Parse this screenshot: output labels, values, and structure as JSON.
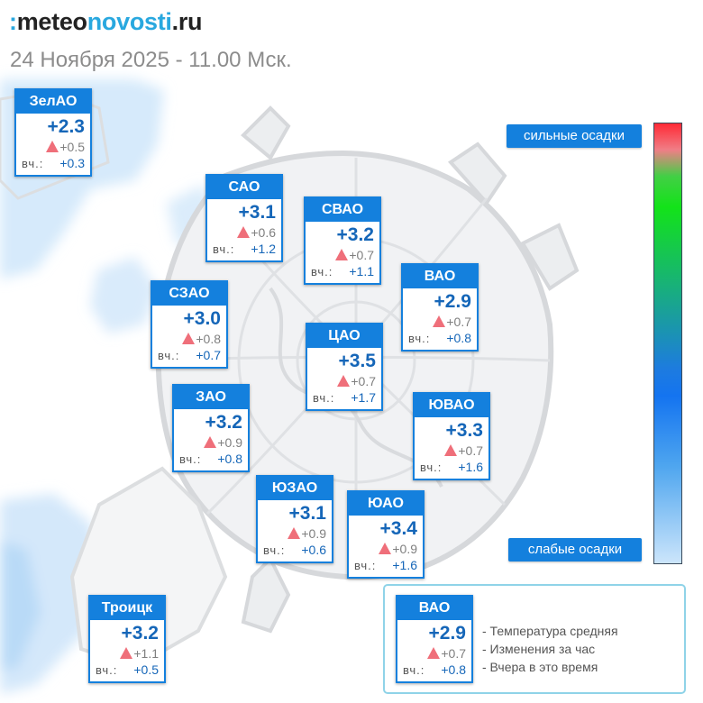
{
  "brand": {
    "mark": ":",
    "part1": "meteo",
    "part2": "novosti",
    "part3": ".ru"
  },
  "subtitle": "24 Ноября 2025 - 11.00 Мск.",
  "colors": {
    "card_accent": "#1480dd",
    "temp_text": "#1566b8",
    "change_triangle": "#ef6f7a",
    "legend_border": "#8fd3e8"
  },
  "icons": {
    "change": "triangle-up-icon"
  },
  "districts": [
    {
      "name": "ЗелАО",
      "temp": "+2.3",
      "change": "+0.5",
      "yesterday_label": "вч.:",
      "yesterday": "+0.3"
    },
    {
      "name": "САО",
      "temp": "+3.1",
      "change": "+0.6",
      "yesterday_label": "вч.:",
      "yesterday": "+1.2"
    },
    {
      "name": "СВАО",
      "temp": "+3.2",
      "change": "+0.7",
      "yesterday_label": "вч.:",
      "yesterday": "+1.1"
    },
    {
      "name": "ВАО",
      "temp": "+2.9",
      "change": "+0.7",
      "yesterday_label": "вч.:",
      "yesterday": "+0.8"
    },
    {
      "name": "СЗАО",
      "temp": "+3.0",
      "change": "+0.8",
      "yesterday_label": "вч.:",
      "yesterday": "+0.7"
    },
    {
      "name": "ЦАО",
      "temp": "+3.5",
      "change": "+0.7",
      "yesterday_label": "вч.:",
      "yesterday": "+1.7"
    },
    {
      "name": "ЗАО",
      "temp": "+3.2",
      "change": "+0.9",
      "yesterday_label": "вч.:",
      "yesterday": "+0.8"
    },
    {
      "name": "ЮВАО",
      "temp": "+3.3",
      "change": "+0.7",
      "yesterday_label": "вч.:",
      "yesterday": "+1.6"
    },
    {
      "name": "ЮЗАО",
      "temp": "+3.1",
      "change": "+0.9",
      "yesterday_label": "вч.:",
      "yesterday": "+0.6"
    },
    {
      "name": "ЮАО",
      "temp": "+3.4",
      "change": "+0.9",
      "yesterday_label": "вч.:",
      "yesterday": "+1.6"
    },
    {
      "name": "Троицк",
      "temp": "+3.2",
      "change": "+1.1",
      "yesterday_label": "вч.:",
      "yesterday": "+0.5"
    }
  ],
  "precip_scale": {
    "top_label": "сильные осадки",
    "bottom_label": "слабые осадки"
  },
  "legend": {
    "example": {
      "name": "ВАО",
      "temp": "+2.9",
      "change": "+0.7",
      "yesterday_label": "вч.:",
      "yesterday": "+0.8"
    },
    "lines": [
      "- Температура средняя",
      "- Изменения за час",
      "- Вчера в это время"
    ]
  }
}
